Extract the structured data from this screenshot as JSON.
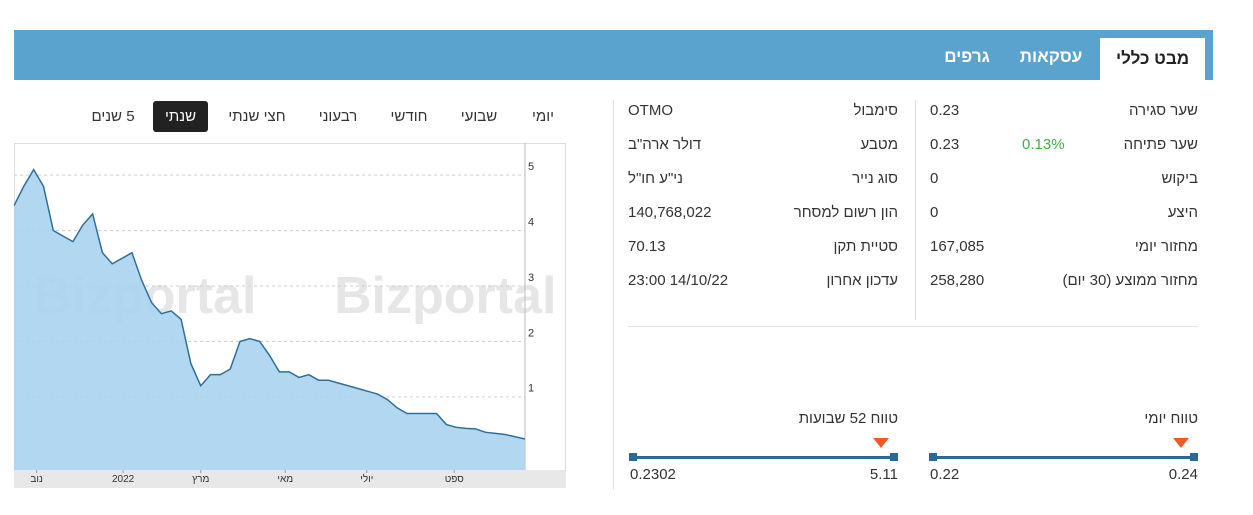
{
  "tabs": [
    "מבט כללי",
    "עסקאות",
    "גרפים"
  ],
  "info": {
    "columns": [
      [
        {
          "label": "שער סגירה",
          "value": "0.23"
        },
        {
          "label": "שער פתיחה",
          "value": "0.23",
          "change": "0.13%"
        },
        {
          "label": "ביקוש",
          "value": "0"
        },
        {
          "label": "היצע",
          "value": "0"
        },
        {
          "label": "מחזור יומי",
          "value": "167,085"
        },
        {
          "label": "מחזור ממוצע (30 יום)",
          "value": "258,280"
        }
      ],
      [
        {
          "label": "סימבול",
          "value": "OTMO"
        },
        {
          "label": "מטבע",
          "value": "דולר ארה\"ב"
        },
        {
          "label": "סוג נייר",
          "value": "ני\"ע חו\"ל"
        },
        {
          "label": "הון רשום למסחר",
          "value": "140,768,022"
        },
        {
          "label": "סטיית תקן",
          "value": "70.13"
        },
        {
          "label": "עדכון אחרון",
          "value": "23:00 14/10/22"
        }
      ]
    ]
  },
  "ranges": [
    {
      "label": "טווח יומי",
      "low": "0.22",
      "high": "0.24"
    },
    {
      "label": "טווח 52 שבועות",
      "low": "0.2302",
      "high": "5.11"
    }
  ],
  "periods": [
    "יומי",
    "שבועי",
    "חודשי",
    "רבעוני",
    "חצי שנתי",
    "שנתי",
    "5 שנים"
  ],
  "active_period": 5,
  "chart_data": {
    "type": "area",
    "color": "#2f6f9a",
    "fill": "#a9d3ef",
    "watermark": "Bizportal",
    "values": [
      4.45,
      4.8,
      5.1,
      4.8,
      4.0,
      3.9,
      3.8,
      4.1,
      4.3,
      3.6,
      3.4,
      3.5,
      3.6,
      3.1,
      2.7,
      2.5,
      2.55,
      2.4,
      1.6,
      1.2,
      1.4,
      1.4,
      1.5,
      2.0,
      2.05,
      2.0,
      1.75,
      1.45,
      1.45,
      1.35,
      1.4,
      1.3,
      1.3,
      1.25,
      1.2,
      1.15,
      1.1,
      1.05,
      0.95,
      0.8,
      0.7,
      0.7,
      0.7,
      0.7,
      0.5,
      0.45,
      0.43,
      0.42,
      0.36,
      0.34,
      0.32,
      0.28,
      0.24
    ],
    "xticks": [
      {
        "value": 2.3,
        "label": "נוב"
      },
      {
        "value": 11.1,
        "label": "2022"
      },
      {
        "value": 19,
        "label": "מרץ"
      },
      {
        "value": 27.6,
        "label": "מאי"
      },
      {
        "value": 35.9,
        "label": "יולי"
      },
      {
        "value": 44.8,
        "label": "ספט"
      }
    ],
    "ylim": [
      -0.32,
      5.58
    ],
    "yticks": [
      1,
      2,
      3,
      4,
      5
    ],
    "grid": true
  }
}
